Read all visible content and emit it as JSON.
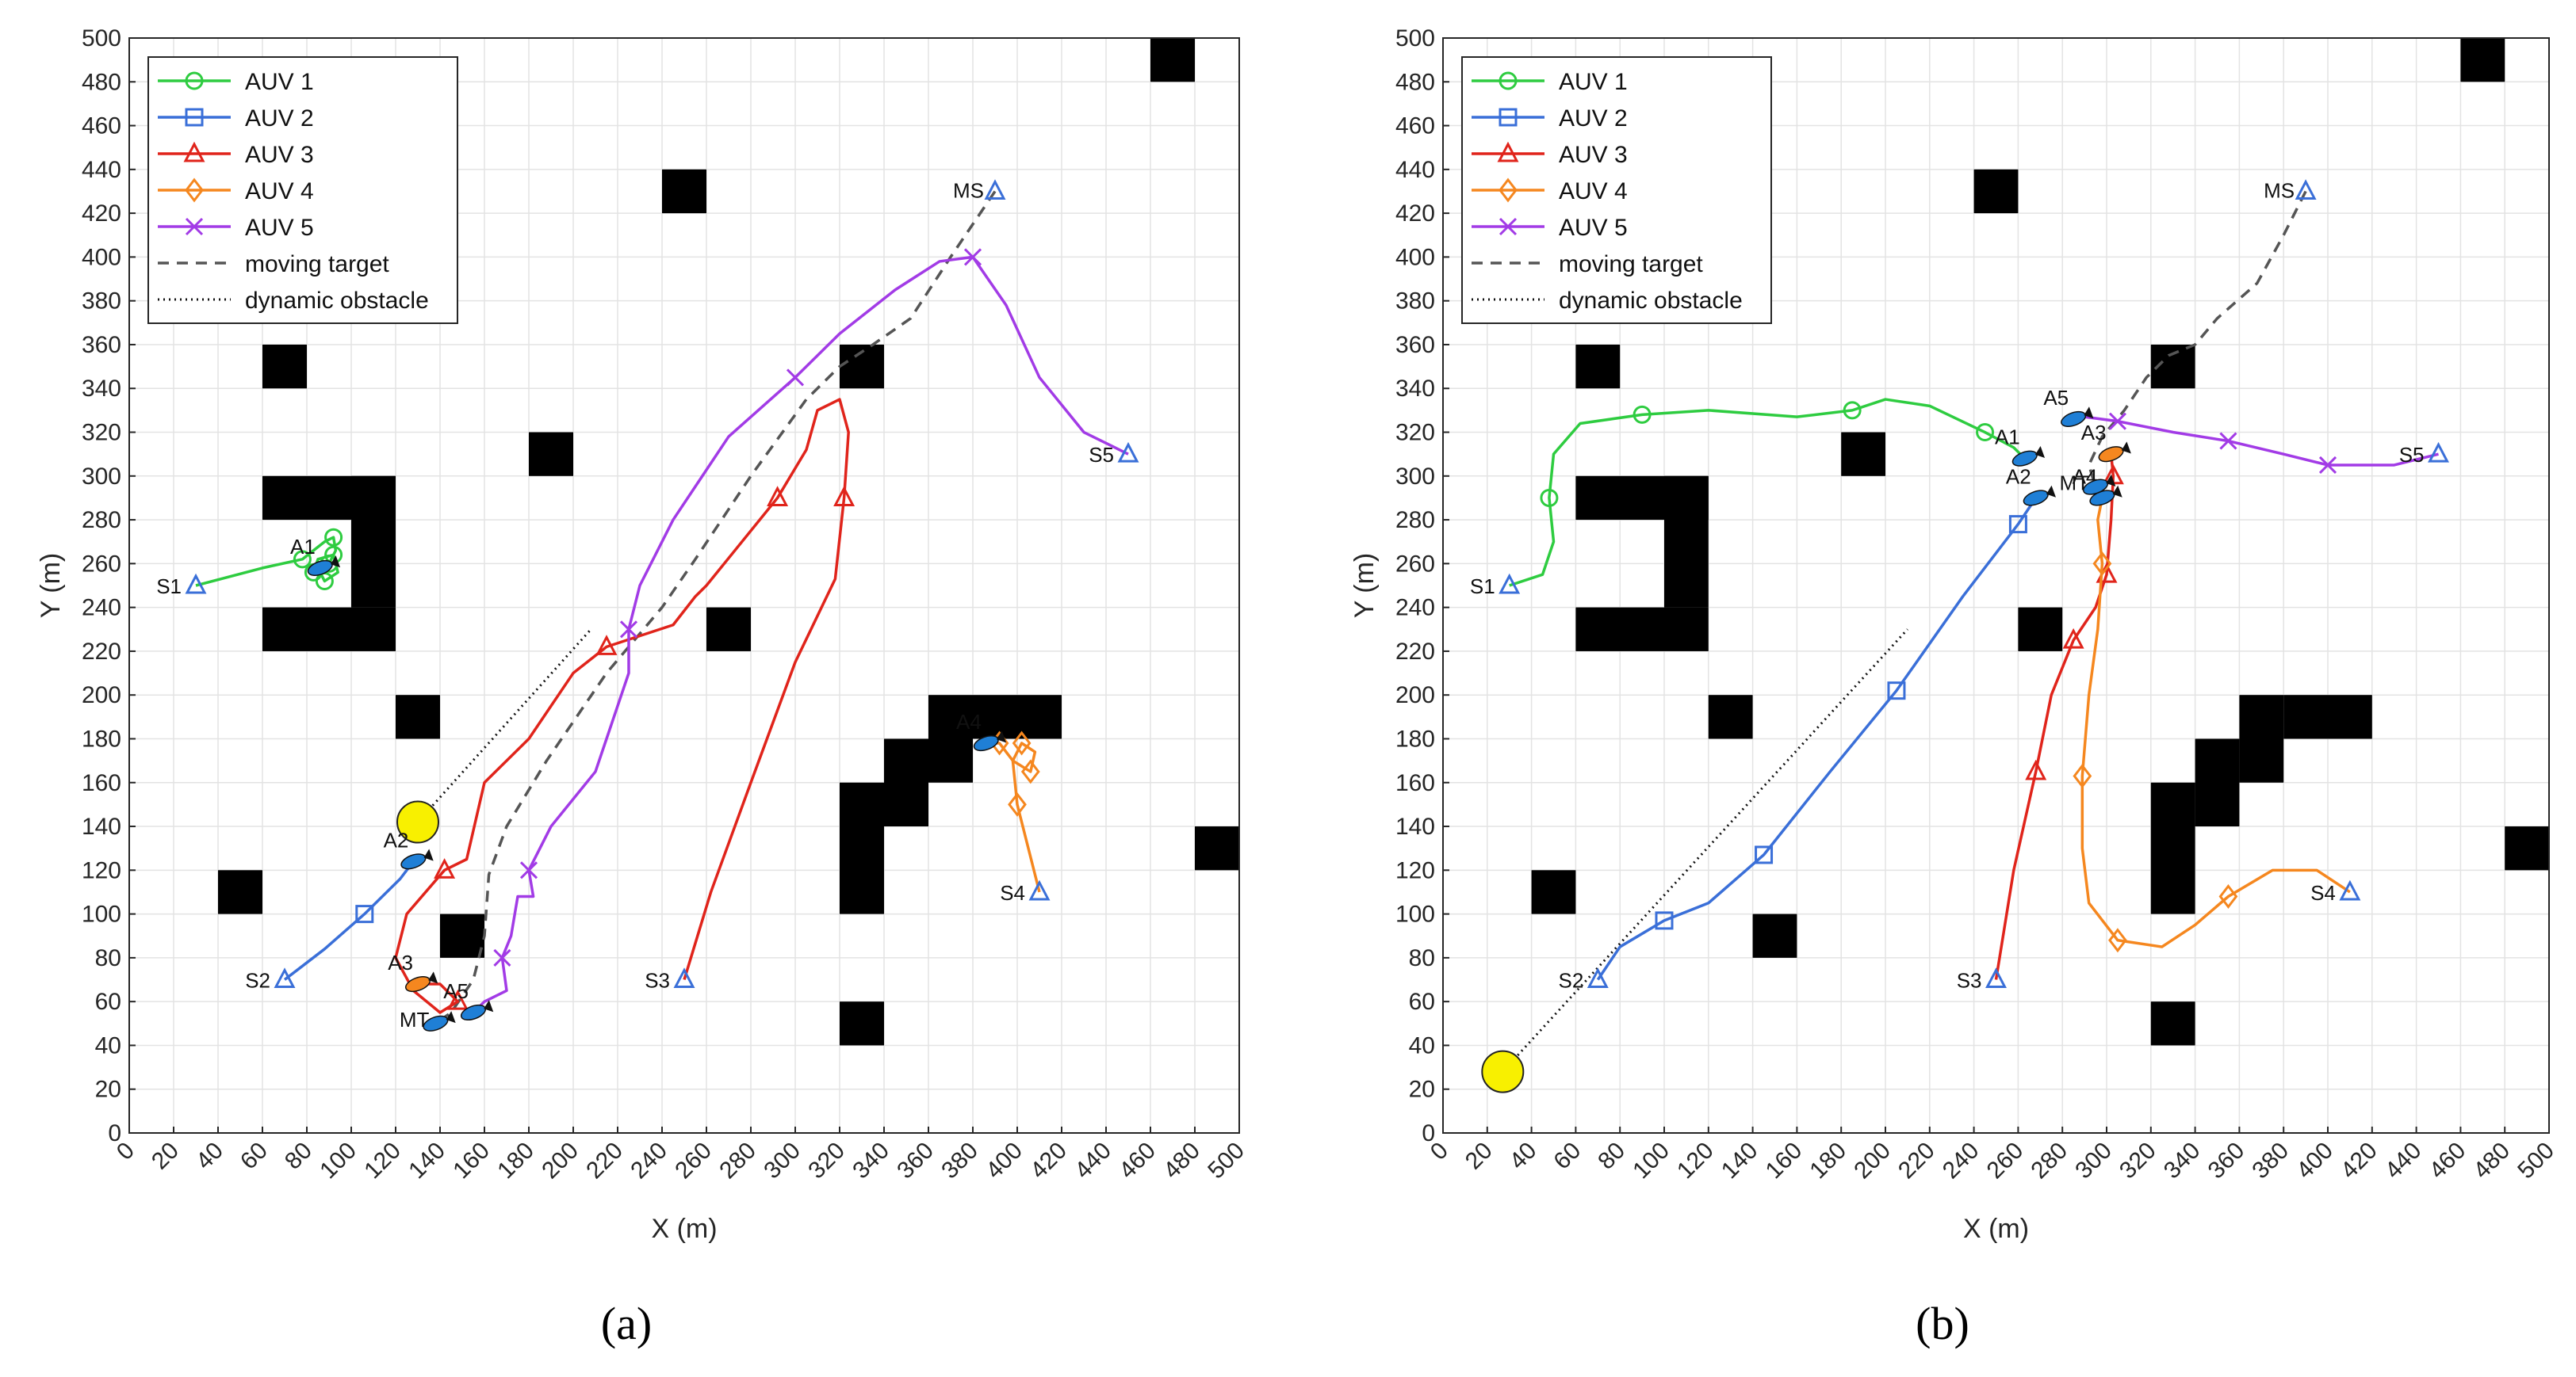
{
  "colors": {
    "auv1": "#2ecc40",
    "auv2": "#3a6fd8",
    "auv3": "#e0241b",
    "auv4": "#f5871f",
    "auv5": "#a23be6",
    "target": "#555555",
    "obstacle": "#000000",
    "ball": "#f8f000",
    "fish": "#1f7fd6"
  },
  "chart_data": [
    {
      "type": "line",
      "panel_label": "(a)",
      "xlabel": "X (m)",
      "ylabel": "Y (m)",
      "xlim": [
        0,
        500
      ],
      "ylim": [
        0,
        500
      ],
      "xticks": [
        "0",
        "20",
        "40",
        "60",
        "80",
        "100",
        "120",
        "140",
        "160",
        "180",
        "200",
        "220",
        "240",
        "260",
        "280",
        "300",
        "320",
        "340",
        "360",
        "380",
        "400",
        "420",
        "440",
        "460",
        "480",
        "500"
      ],
      "yticks": [
        "0",
        "20",
        "40",
        "60",
        "80",
        "100",
        "120",
        "140",
        "160",
        "180",
        "200",
        "220",
        "240",
        "260",
        "280",
        "300",
        "320",
        "340",
        "360",
        "380",
        "400",
        "420",
        "440",
        "460",
        "480",
        "500"
      ],
      "legend": [
        "AUV 1",
        "AUV 2",
        "AUV 3",
        "AUV 4",
        "AUV 5",
        "moving target",
        "dynamic obstacle"
      ],
      "obstacles": [
        [
          60,
          340,
          80,
          360
        ],
        [
          180,
          300,
          200,
          320
        ],
        [
          240,
          420,
          260,
          440
        ],
        [
          320,
          340,
          340,
          360
        ],
        [
          460,
          480,
          480,
          500
        ],
        [
          120,
          180,
          140,
          200
        ],
        [
          40,
          100,
          60,
          120
        ],
        [
          140,
          80,
          160,
          100
        ],
        [
          260,
          220,
          280,
          240
        ],
        [
          320,
          40,
          340,
          60
        ],
        [
          480,
          120,
          500,
          140
        ],
        [
          60,
          280,
          120,
          300
        ],
        [
          100,
          240,
          120,
          300
        ],
        [
          60,
          220,
          120,
          240
        ],
        [
          320,
          100,
          340,
          160
        ],
        [
          340,
          140,
          360,
          180
        ],
        [
          360,
          160,
          380,
          200
        ],
        [
          380,
          180,
          420,
          200
        ]
      ],
      "series": [
        {
          "name": "AUV 1",
          "key": "auv1",
          "marker": "circle",
          "start_label": "S1",
          "end_label": "A1",
          "points": [
            [
              30,
              250
            ],
            [
              60,
              258
            ],
            [
              78,
              262
            ],
            [
              88,
              270
            ],
            [
              92,
              272
            ],
            [
              93,
              266
            ],
            [
              90,
              260
            ],
            [
              86,
              256
            ],
            [
              88,
              252
            ],
            [
              94,
              256
            ],
            [
              92,
              264
            ],
            [
              85,
              262
            ],
            [
              83,
              256
            ],
            [
              86,
              258
            ]
          ]
        },
        {
          "name": "AUV 2",
          "key": "auv2",
          "marker": "square",
          "start_label": "S2",
          "end_label": "A2",
          "points": [
            [
              70,
              70
            ],
            [
              88,
              84
            ],
            [
              106,
              100
            ],
            [
              122,
              116
            ],
            [
              128,
              124
            ]
          ]
        },
        {
          "name": "AUV 3",
          "key": "auv3",
          "marker": "triangle",
          "start_label": "S3",
          "end_label": "A3",
          "points": [
            [
              250,
              70
            ],
            [
              262,
              110
            ],
            [
              280,
              160
            ],
            [
              300,
              215
            ],
            [
              318,
              253
            ],
            [
              322,
              290
            ],
            [
              324,
              320
            ],
            [
              320,
              335
            ],
            [
              310,
              330
            ],
            [
              305,
              312
            ],
            [
              292,
              290
            ],
            [
              272,
              265
            ],
            [
              260,
              250
            ],
            [
              255,
              245
            ],
            [
              245,
              232
            ],
            [
              215,
              222
            ],
            [
              200,
              210
            ],
            [
              180,
              180
            ],
            [
              160,
              160
            ],
            [
              152,
              125
            ],
            [
              142,
              120
            ],
            [
              125,
              100
            ],
            [
              120,
              80
            ],
            [
              128,
              65
            ],
            [
              140,
              55
            ],
            [
              148,
              60
            ],
            [
              140,
              68
            ],
            [
              130,
              68
            ]
          ]
        },
        {
          "name": "AUV 4",
          "key": "auv4",
          "marker": "diamond",
          "start_label": "S4",
          "end_label": "A4",
          "points": [
            [
              410,
              110
            ],
            [
              405,
              130
            ],
            [
              400,
              150
            ],
            [
              398,
              170
            ],
            [
              402,
              178
            ],
            [
              408,
              174
            ],
            [
              406,
              165
            ],
            [
              398,
              170
            ],
            [
              392,
              178
            ],
            [
              386,
              178
            ]
          ]
        },
        {
          "name": "AUV 5",
          "key": "auv5",
          "marker": "x",
          "start_label": "S5",
          "end_label": "A5",
          "points": [
            [
              450,
              310
            ],
            [
              430,
              320
            ],
            [
              410,
              345
            ],
            [
              395,
              378
            ],
            [
              380,
              400
            ],
            [
              365,
              398
            ],
            [
              345,
              385
            ],
            [
              320,
              365
            ],
            [
              300,
              345
            ],
            [
              270,
              318
            ],
            [
              245,
              280
            ],
            [
              230,
              250
            ],
            [
              225,
              230
            ],
            [
              225,
              210
            ],
            [
              210,
              165
            ],
            [
              190,
              140
            ],
            [
              180,
              120
            ],
            [
              182,
              108
            ],
            [
              175,
              108
            ],
            [
              172,
              90
            ],
            [
              168,
              80
            ],
            [
              170,
              65
            ],
            [
              160,
              60
            ],
            [
              155,
              55
            ]
          ]
        }
      ],
      "moving_target": {
        "start_label": "MS",
        "end_label": "MT",
        "points": [
          [
            390,
            430
          ],
          [
            370,
            400
          ],
          [
            352,
            372
          ],
          [
            335,
            360
          ],
          [
            320,
            350
          ],
          [
            305,
            335
          ],
          [
            280,
            300
          ],
          [
            255,
            262
          ],
          [
            240,
            240
          ],
          [
            215,
            210
          ],
          [
            188,
            170
          ],
          [
            170,
            140
          ],
          [
            162,
            118
          ],
          [
            160,
            90
          ],
          [
            155,
            70
          ],
          [
            145,
            55
          ],
          [
            138,
            50
          ]
        ]
      },
      "dynamic_obstacle": {
        "points": [
          [
            130,
            142
          ],
          [
            208,
            230
          ]
        ]
      },
      "ball_center": [
        130,
        142
      ]
    },
    {
      "type": "line",
      "panel_label": "(b)",
      "xlabel": "X (m)",
      "ylabel": "Y (m)",
      "xlim": [
        0,
        500
      ],
      "ylim": [
        0,
        500
      ],
      "xticks": [
        "0",
        "20",
        "40",
        "60",
        "80",
        "100",
        "120",
        "140",
        "160",
        "180",
        "200",
        "220",
        "240",
        "260",
        "280",
        "300",
        "320",
        "340",
        "360",
        "380",
        "400",
        "420",
        "440",
        "460",
        "480",
        "500"
      ],
      "yticks": [
        "0",
        "20",
        "40",
        "60",
        "80",
        "100",
        "120",
        "140",
        "160",
        "180",
        "200",
        "220",
        "240",
        "260",
        "280",
        "300",
        "320",
        "340",
        "360",
        "380",
        "400",
        "420",
        "440",
        "460",
        "480",
        "500"
      ],
      "legend": [
        "AUV 1",
        "AUV 2",
        "AUV 3",
        "AUV 4",
        "AUV 5",
        "moving target",
        "dynamic obstacle"
      ],
      "obstacles": [
        [
          60,
          340,
          80,
          360
        ],
        [
          180,
          300,
          200,
          320
        ],
        [
          240,
          420,
          260,
          440
        ],
        [
          320,
          340,
          340,
          360
        ],
        [
          460,
          480,
          480,
          500
        ],
        [
          120,
          180,
          140,
          200
        ],
        [
          40,
          100,
          60,
          120
        ],
        [
          140,
          80,
          160,
          100
        ],
        [
          260,
          220,
          280,
          240
        ],
        [
          320,
          40,
          340,
          60
        ],
        [
          480,
          120,
          500,
          140
        ],
        [
          60,
          280,
          120,
          300
        ],
        [
          100,
          240,
          120,
          300
        ],
        [
          60,
          220,
          120,
          240
        ],
        [
          320,
          100,
          340,
          160
        ],
        [
          340,
          140,
          360,
          180
        ],
        [
          360,
          160,
          380,
          200
        ],
        [
          380,
          180,
          420,
          200
        ]
      ],
      "series": [
        {
          "name": "AUV 1",
          "key": "auv1",
          "marker": "circle",
          "start_label": "S1",
          "end_label": "A1",
          "points": [
            [
              30,
              250
            ],
            [
              45,
              255
            ],
            [
              50,
              270
            ],
            [
              48,
              290
            ],
            [
              50,
              310
            ],
            [
              62,
              324
            ],
            [
              90,
              328
            ],
            [
              120,
              330
            ],
            [
              160,
              327
            ],
            [
              185,
              330
            ],
            [
              200,
              335
            ],
            [
              220,
              332
            ],
            [
              245,
              320
            ],
            [
              258,
              313
            ],
            [
              263,
              308
            ]
          ]
        },
        {
          "name": "AUV 2",
          "key": "auv2",
          "marker": "square",
          "start_label": "S2",
          "end_label": "A2",
          "points": [
            [
              70,
              70
            ],
            [
              80,
              85
            ],
            [
              100,
              97
            ],
            [
              120,
              105
            ],
            [
              145,
              127
            ],
            [
              175,
              165
            ],
            [
              205,
              202
            ],
            [
              235,
              245
            ],
            [
              260,
              278
            ],
            [
              268,
              290
            ]
          ]
        },
        {
          "name": "AUV 3",
          "key": "auv3",
          "marker": "triangle",
          "start_label": "S3",
          "end_label": "A3",
          "points": [
            [
              250,
              70
            ],
            [
              258,
              120
            ],
            [
              268,
              165
            ],
            [
              275,
              200
            ],
            [
              285,
              225
            ],
            [
              295,
              240
            ],
            [
              300,
              255
            ],
            [
              302,
              280
            ],
            [
              303,
              300
            ],
            [
              302,
              310
            ]
          ]
        },
        {
          "name": "AUV 4",
          "key": "auv4",
          "marker": "diamond",
          "start_label": "S4",
          "end_label": "A4",
          "points": [
            [
              410,
              110
            ],
            [
              395,
              120
            ],
            [
              375,
              120
            ],
            [
              355,
              108
            ],
            [
              340,
              95
            ],
            [
              325,
              85
            ],
            [
              305,
              88
            ],
            [
              292,
              105
            ],
            [
              289,
              130
            ],
            [
              289,
              163
            ],
            [
              292,
              200
            ],
            [
              296,
              230
            ],
            [
              298,
              260
            ],
            [
              296,
              280
            ],
            [
              298,
              290
            ]
          ]
        },
        {
          "name": "AUV 5",
          "key": "auv5",
          "marker": "x",
          "start_label": "S5",
          "end_label": "A5",
          "points": [
            [
              450,
              310
            ],
            [
              430,
              305
            ],
            [
              400,
              305
            ],
            [
              380,
              310
            ],
            [
              355,
              316
            ],
            [
              330,
              320
            ],
            [
              305,
              325
            ],
            [
              290,
              327
            ],
            [
              285,
              326
            ]
          ]
        }
      ],
      "moving_target": {
        "start_label": "MS",
        "end_label": "MT",
        "points": [
          [
            390,
            430
          ],
          [
            380,
            410
          ],
          [
            368,
            388
          ],
          [
            350,
            372
          ],
          [
            340,
            360
          ],
          [
            328,
            355
          ],
          [
            318,
            345
          ],
          [
            308,
            330
          ],
          [
            298,
            318
          ],
          [
            292,
            305
          ],
          [
            295,
            295
          ]
        ]
      },
      "dynamic_obstacle": {
        "points": [
          [
            27,
            28
          ],
          [
            210,
            230
          ]
        ]
      },
      "ball_center": [
        27,
        28
      ]
    }
  ]
}
